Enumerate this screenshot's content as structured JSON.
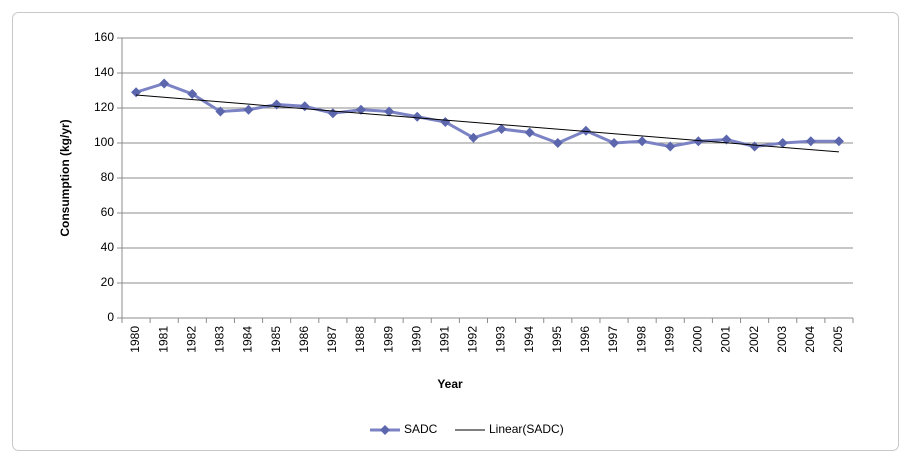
{
  "chart_data": {
    "type": "line",
    "x_label": "Year",
    "y_label": "Consumption (kg/yr)",
    "categories": [
      "1980",
      "1981",
      "1982",
      "1983",
      "1984",
      "1985",
      "1986",
      "1987",
      "1988",
      "1989",
      "1990",
      "1991",
      "1992",
      "1993",
      "1994",
      "1995",
      "1996",
      "1997",
      "1998",
      "1999",
      "2000",
      "2001",
      "2002",
      "2003",
      "2004",
      "2005"
    ],
    "series": [
      {
        "name": "SADC",
        "color": "#7c83c4",
        "marker_color": "#5c66ad",
        "values": [
          129,
          134,
          128,
          118,
          119,
          122,
          121,
          117,
          119,
          118,
          115,
          112,
          103,
          108,
          106,
          100,
          107,
          100,
          101,
          98,
          101,
          102,
          98,
          100,
          101,
          101
        ]
      }
    ],
    "trendline": {
      "name": "Linear(SADC)",
      "color": "#000000",
      "values": [
        127.4,
        94.9
      ]
    },
    "ylim": [
      0,
      160
    ],
    "yticks": [
      0,
      20,
      40,
      60,
      80,
      100,
      120,
      140,
      160
    ],
    "grid": true,
    "legend": "bottom"
  }
}
